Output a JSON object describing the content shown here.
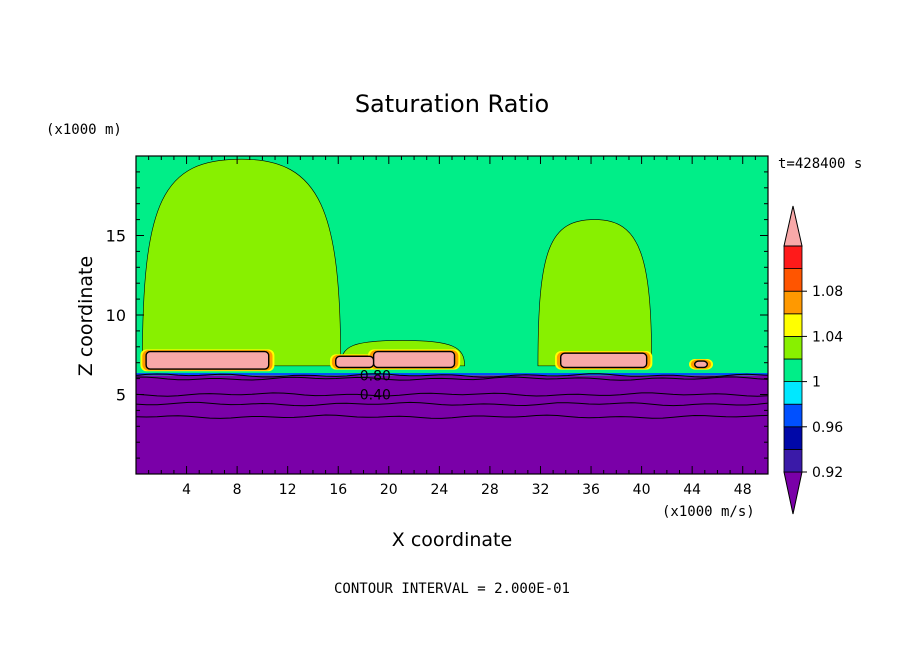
{
  "chart_data": {
    "type": "heatmap",
    "title": "Saturation Ratio",
    "xlabel": "X coordinate",
    "ylabel": "Z coordinate",
    "x_unit": "(x1000 m/s)",
    "y_unit": "(x1000 m)",
    "time_label": "t=428400 s",
    "footer": "CONTOUR INTERVAL = 2.000E-01",
    "xlim": [
      0,
      50
    ],
    "ylim": [
      0,
      20
    ],
    "x_ticks": [
      4,
      8,
      12,
      16,
      20,
      24,
      28,
      32,
      36,
      40,
      44,
      48
    ],
    "y_ticks": [
      5,
      10,
      15
    ],
    "contour_labels": [
      {
        "text": "0.80",
        "x": 17.7,
        "y": 6.2
      },
      {
        "text": "0.40",
        "x": 17.7,
        "y": 5.0
      }
    ],
    "colorbar": {
      "tick_labels": [
        "1.08",
        "1.04",
        "1",
        "0.96",
        "0.92"
      ],
      "colors": [
        "#7a00a8",
        "#3a1aa8",
        "#0008a8",
        "#0050ff",
        "#00e8ff",
        "#00ee88",
        "#88f000",
        "#ffff00",
        "#ff9900",
        "#ff5500",
        "#ff1a1a",
        "#f8a8a8"
      ]
    },
    "regions": {
      "background_color": "#00ee88",
      "low_color": "#7a00a8",
      "cloud_color": "#88f000",
      "core_color": "#f8a8a8",
      "low_layer_top": 6.2,
      "clouds": [
        {
          "x_range": [
            0.5,
            16.2
          ],
          "z_top": 19.8
        },
        {
          "x_range": [
            16.2,
            26.0
          ],
          "z_top": 8.4
        },
        {
          "x_range": [
            31.8,
            40.8
          ],
          "z_top": 16.0
        }
      ],
      "cores": [
        {
          "x_range": [
            0.8,
            10.5
          ],
          "z_range": [
            6.6,
            7.7
          ]
        },
        {
          "x_range": [
            15.8,
            18.8
          ],
          "z_range": [
            6.7,
            7.4
          ]
        },
        {
          "x_range": [
            18.8,
            25.2
          ],
          "z_range": [
            6.7,
            7.7
          ]
        },
        {
          "x_range": [
            33.6,
            40.4
          ],
          "z_range": [
            6.7,
            7.6
          ]
        },
        {
          "x_range": [
            44.2,
            45.2
          ],
          "z_range": [
            6.7,
            7.1
          ]
        }
      ]
    }
  }
}
